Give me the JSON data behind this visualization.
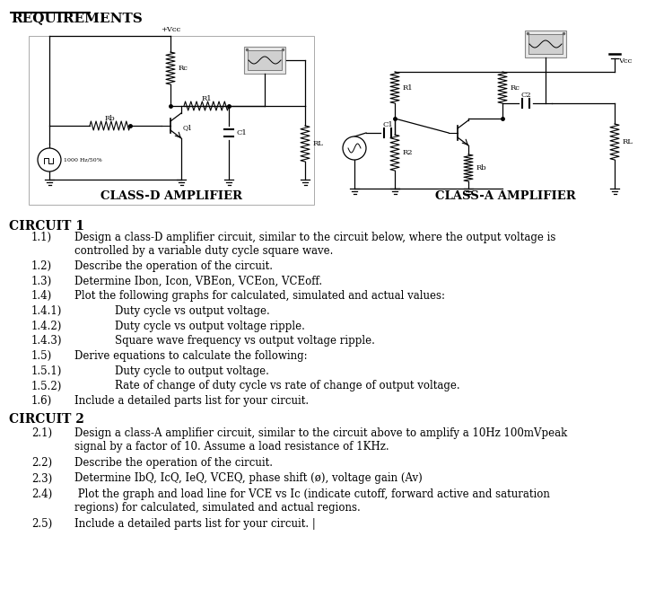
{
  "title": "REQUIREMENTS",
  "circuit1_label": "CLASS-D AMPLIFIER",
  "circuit2_label": "CLASS-A AMPLIFIER",
  "circuit1_header": "CIRCUIT 1",
  "circuit2_header": "CIRCUIT 2",
  "bg_color": "#ffffff",
  "text_color": "#000000",
  "items_circuit1": [
    {
      "num": "1.1)",
      "indent": 1,
      "text": "Design a class-D amplifier circuit, similar to the circuit below, where the output voltage is\ncontrolled by a variable duty cycle square wave."
    },
    {
      "num": "1.2)",
      "indent": 1,
      "text": "Describe the operation of the circuit."
    },
    {
      "num": "1.3)",
      "indent": 1,
      "text": "Determine Ibon, Icon, VBEon, VCEon, VCEoff."
    },
    {
      "num": "1.4)",
      "indent": 1,
      "text": "Plot the following graphs for calculated, simulated and actual values:"
    },
    {
      "num": "1.4.1)",
      "indent": 2,
      "text": "Duty cycle vs output voltage."
    },
    {
      "num": "1.4.2)",
      "indent": 2,
      "text": "Duty cycle vs output voltage ripple."
    },
    {
      "num": "1.4.3)",
      "indent": 2,
      "text": "Square wave frequency vs output voltage ripple."
    },
    {
      "num": "1.5)",
      "indent": 1,
      "text": "Derive equations to calculate the following:"
    },
    {
      "num": "1.5.1)",
      "indent": 2,
      "text": "Duty cycle to output voltage."
    },
    {
      "num": "1.5.2)",
      "indent": 2,
      "text": "Rate of change of duty cycle vs rate of change of output voltage."
    },
    {
      "num": "1.6)",
      "indent": 1,
      "text": "Include a detailed parts list for your circuit."
    }
  ],
  "items_circuit2": [
    {
      "num": "2.1)",
      "indent": 1,
      "text": "Design a class-A amplifier circuit, similar to the circuit above to amplify a 10Hz 100mVpeak\nsignal by a factor of 10. Assume a load resistance of 1KHz."
    },
    {
      "num": "2.2)",
      "indent": 1,
      "text": "Describe the operation of the circuit."
    },
    {
      "num": "2.3)",
      "indent": 1,
      "text": "Determine IbQ, IcQ, IeQ, VCEQ, phase shift (ø), voltage gain (Av)"
    },
    {
      "num": "2.4)",
      "indent": 1,
      "text": " Plot the graph and load line for VCE vs Ic (indicate cutoff, forward active and saturation\nregions) for calculated, simulated and actual regions."
    },
    {
      "num": "2.5)",
      "indent": 1,
      "text": "Include a detailed parts list for your circuit. |"
    }
  ]
}
